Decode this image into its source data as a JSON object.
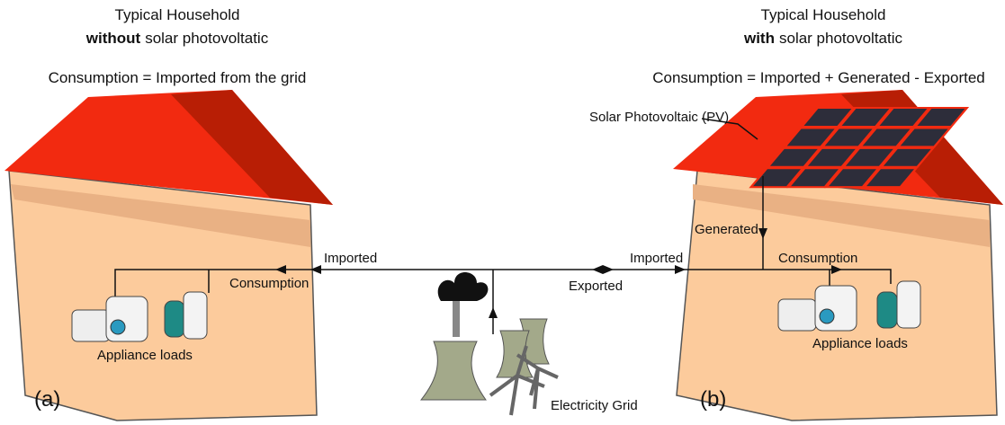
{
  "left": {
    "title": "Typical Household",
    "subtitle_bold": "without",
    "subtitle_rest": "solar photovoltatic",
    "equation": "Consumption = Imported from the grid",
    "imported": "Imported",
    "consumption": "Consumption",
    "appliances": "Appliance loads",
    "label": "(a)"
  },
  "right": {
    "title": "Typical Household",
    "subtitle_bold": "with",
    "subtitle_rest": "solar photovoltatic",
    "equation": "Consumption = Imported + Generated - Exported",
    "pv": "Solar Photovoltaic (PV)",
    "generated": "Generated",
    "imported": "Imported",
    "exported": "Exported",
    "consumption": "Consumption",
    "appliances": "Appliance loads",
    "label": "(b)"
  },
  "grid": {
    "label": "Electricity Grid"
  }
}
